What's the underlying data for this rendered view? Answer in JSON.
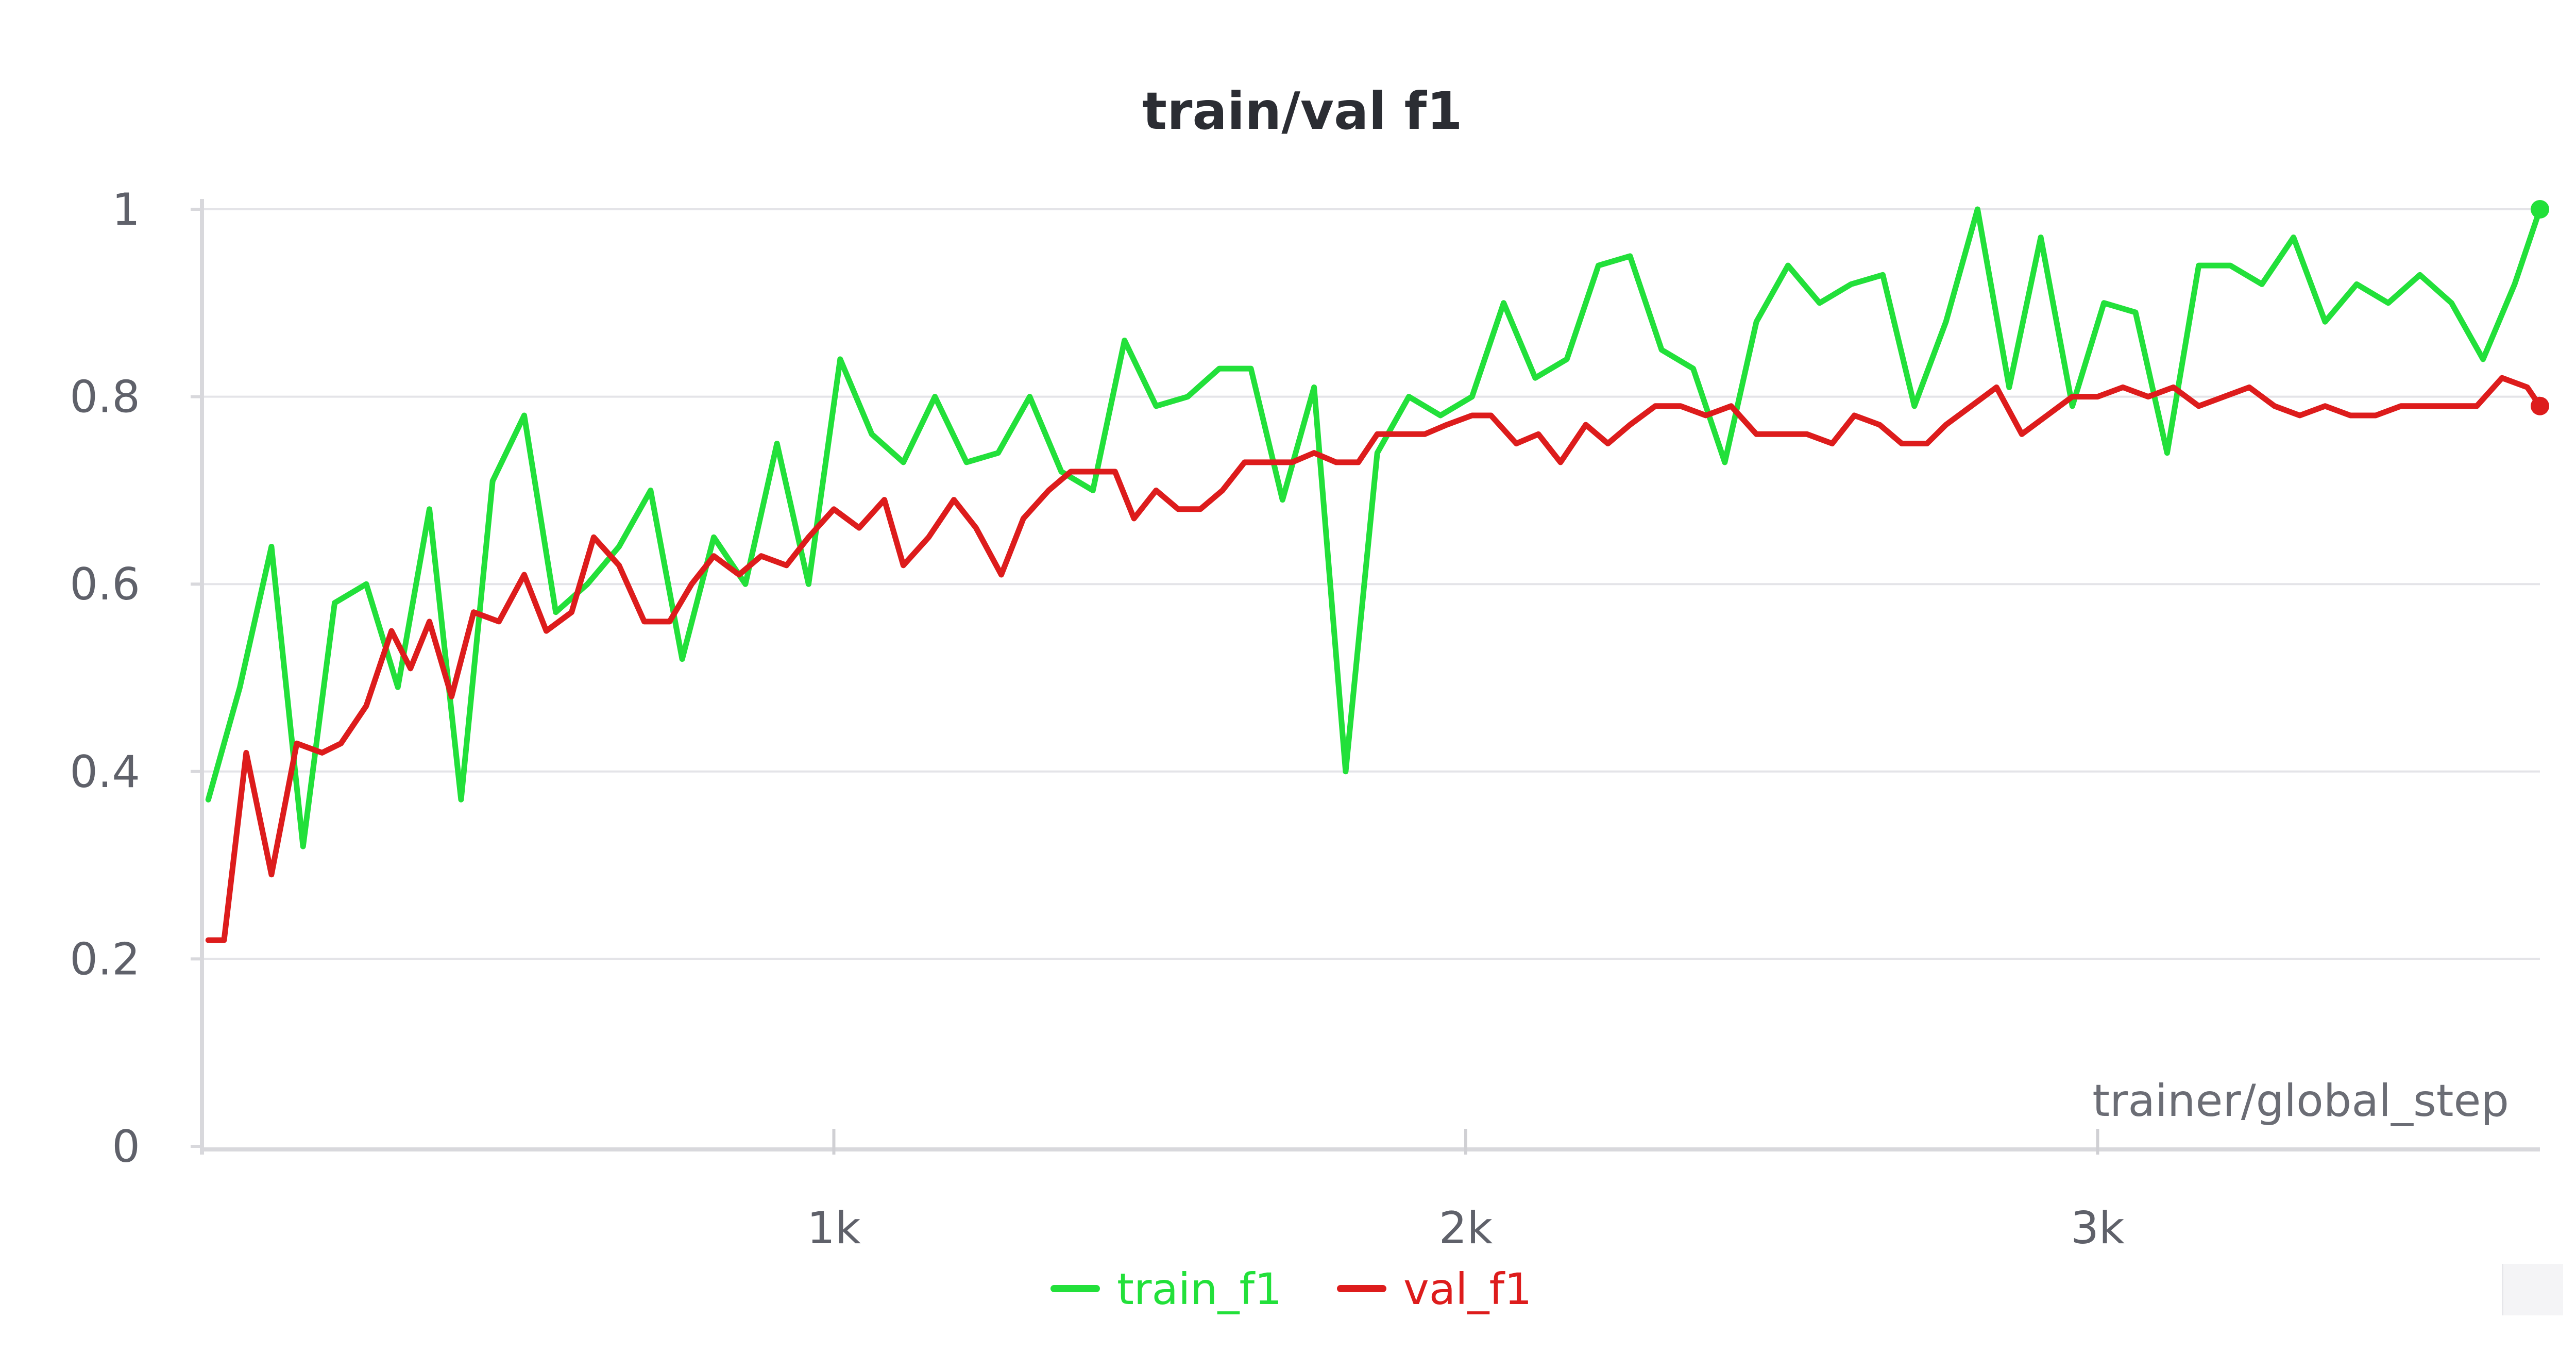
{
  "chart_data": {
    "type": "line",
    "title": "train/val f1",
    "xlabel": "trainer/global_step",
    "ylabel": "",
    "xlim": [
      0,
      3700
    ],
    "ylim": [
      0,
      1
    ],
    "xticks": [
      1000,
      2000,
      3000
    ],
    "xtick_labels": [
      "1k",
      "2k",
      "3k"
    ],
    "yticks": [
      0,
      0.2,
      0.4,
      0.6,
      0.8,
      1
    ],
    "ytick_labels": [
      "0",
      "0.2",
      "0.4",
      "0.6",
      "0.8",
      "1"
    ],
    "grid": true,
    "legend_position": "bottom-center",
    "series": [
      {
        "name": "train_f1",
        "color": "#22e03a",
        "x": [
          10,
          60,
          110,
          160,
          210,
          260,
          310,
          360,
          410,
          460,
          510,
          560,
          610,
          660,
          710,
          760,
          810,
          860,
          910,
          960,
          1010,
          1060,
          1110,
          1160,
          1210,
          1260,
          1310,
          1360,
          1410,
          1460,
          1510,
          1560,
          1610,
          1660,
          1710,
          1760,
          1810,
          1860,
          1910,
          1960,
          2010,
          2060,
          2110,
          2160,
          2210,
          2260,
          2310,
          2360,
          2410,
          2460,
          2510,
          2560,
          2610,
          2660,
          2710,
          2760,
          2810,
          2860,
          2910,
          2960,
          3010,
          3060,
          3110,
          3160,
          3210,
          3260,
          3310,
          3360,
          3410,
          3460,
          3510,
          3560,
          3610,
          3660,
          3700
        ],
        "y": [
          0.37,
          0.49,
          0.64,
          0.32,
          0.58,
          0.6,
          0.49,
          0.68,
          0.37,
          0.71,
          0.78,
          0.57,
          0.6,
          0.64,
          0.7,
          0.52,
          0.65,
          0.6,
          0.75,
          0.6,
          0.84,
          0.76,
          0.73,
          0.8,
          0.73,
          0.74,
          0.8,
          0.72,
          0.7,
          0.86,
          0.79,
          0.8,
          0.83,
          0.83,
          0.69,
          0.81,
          0.4,
          0.74,
          0.8,
          0.78,
          0.8,
          0.9,
          0.82,
          0.84,
          0.94,
          0.95,
          0.85,
          0.83,
          0.73,
          0.88,
          0.94,
          0.9,
          0.92,
          0.93,
          0.79,
          0.88,
          1.0,
          0.81,
          0.97,
          0.79,
          0.9,
          0.89,
          0.74,
          0.94,
          0.94,
          0.92,
          0.97,
          0.88,
          0.92,
          0.9,
          0.93,
          0.9,
          0.84,
          0.92,
          1.0
        ]
      },
      {
        "name": "val_f1",
        "color": "#dd1c1c",
        "x": [
          10,
          35,
          70,
          110,
          150,
          190,
          220,
          260,
          300,
          330,
          360,
          395,
          430,
          470,
          510,
          545,
          585,
          620,
          660,
          700,
          740,
          775,
          810,
          850,
          885,
          925,
          960,
          1000,
          1040,
          1080,
          1110,
          1150,
          1190,
          1225,
          1265,
          1300,
          1340,
          1375,
          1410,
          1445,
          1475,
          1510,
          1545,
          1580,
          1615,
          1650,
          1690,
          1725,
          1760,
          1795,
          1830,
          1860,
          1900,
          1935,
          1970,
          2010,
          2040,
          2080,
          2115,
          2150,
          2190,
          2225,
          2260,
          2300,
          2340,
          2380,
          2420,
          2460,
          2500,
          2540,
          2580,
          2615,
          2655,
          2690,
          2730,
          2760,
          2800,
          2840,
          2880,
          2920,
          2960,
          3000,
          3040,
          3080,
          3120,
          3160,
          3200,
          3240,
          3280,
          3320,
          3360,
          3400,
          3440,
          3480,
          3520,
          3560,
          3600,
          3640,
          3680,
          3700
        ],
        "y": [
          0.22,
          0.22,
          0.42,
          0.29,
          0.43,
          0.42,
          0.43,
          0.47,
          0.55,
          0.51,
          0.56,
          0.48,
          0.57,
          0.56,
          0.61,
          0.55,
          0.57,
          0.65,
          0.62,
          0.56,
          0.56,
          0.6,
          0.63,
          0.61,
          0.63,
          0.62,
          0.65,
          0.68,
          0.66,
          0.69,
          0.62,
          0.65,
          0.69,
          0.66,
          0.61,
          0.67,
          0.7,
          0.72,
          0.72,
          0.72,
          0.67,
          0.7,
          0.68,
          0.68,
          0.7,
          0.73,
          0.73,
          0.73,
          0.74,
          0.73,
          0.73,
          0.76,
          0.76,
          0.76,
          0.77,
          0.78,
          0.78,
          0.75,
          0.76,
          0.73,
          0.77,
          0.75,
          0.77,
          0.79,
          0.79,
          0.78,
          0.79,
          0.76,
          0.76,
          0.76,
          0.75,
          0.78,
          0.77,
          0.75,
          0.75,
          0.77,
          0.79,
          0.81,
          0.76,
          0.78,
          0.8,
          0.8,
          0.81,
          0.8,
          0.81,
          0.79,
          0.8,
          0.81,
          0.79,
          0.78,
          0.79,
          0.78,
          0.78,
          0.79,
          0.79,
          0.79,
          0.79,
          0.82,
          0.81,
          0.79
        ]
      }
    ]
  }
}
